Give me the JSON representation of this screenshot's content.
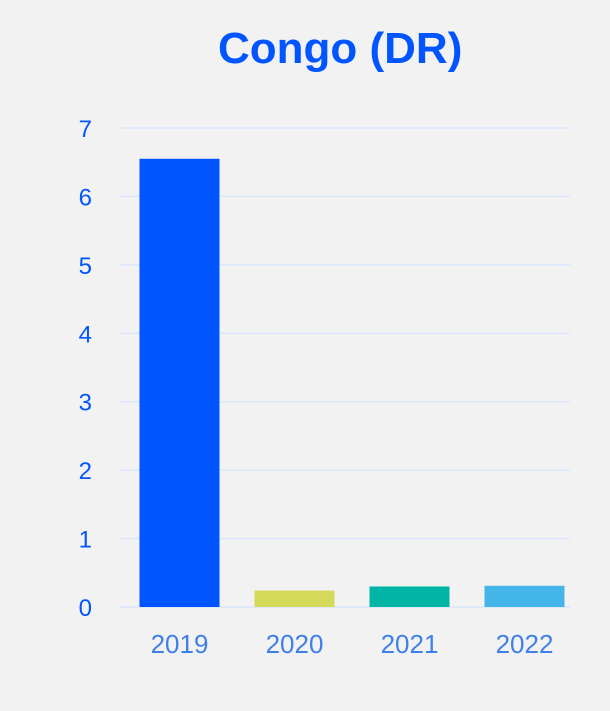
{
  "chart_data": {
    "type": "bar",
    "title": "Congo (DR)",
    "categories": [
      "2019",
      "2020",
      "2021",
      "2022"
    ],
    "values": [
      6.55,
      0.24,
      0.3,
      0.31
    ],
    "colors": [
      "#0055ff",
      "#d4d95a",
      "#00b5a5",
      "#44b5e8"
    ],
    "ylim": [
      0,
      7
    ],
    "yticks": [
      "0",
      "1",
      "2",
      "3",
      "4",
      "5",
      "6",
      "7"
    ],
    "grid": true,
    "xlabel": "",
    "ylabel": ""
  }
}
